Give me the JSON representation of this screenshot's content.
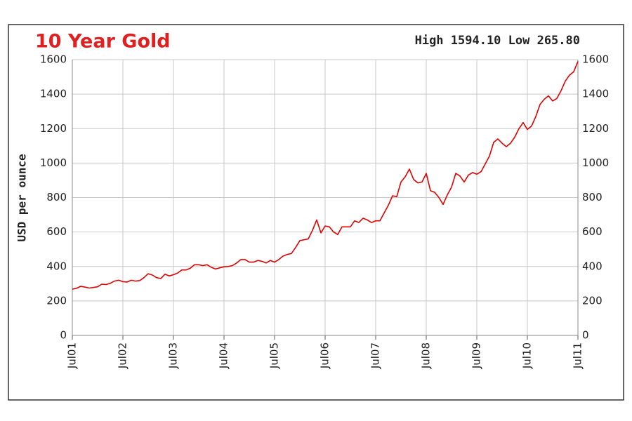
{
  "chart_data": {
    "type": "line",
    "title": "10 Year Gold",
    "summary": "High 1594.10 Low 265.80",
    "y_label": "USD per ounce",
    "categories": [
      "Jul01",
      null,
      null,
      null,
      null,
      null,
      null,
      null,
      null,
      null,
      null,
      null,
      "Jul02",
      null,
      null,
      null,
      null,
      null,
      null,
      null,
      null,
      null,
      null,
      null,
      "Jul03",
      null,
      null,
      null,
      null,
      null,
      null,
      null,
      null,
      null,
      null,
      null,
      "Jul04",
      null,
      null,
      null,
      null,
      null,
      null,
      null,
      null,
      null,
      null,
      null,
      "Jul05",
      null,
      null,
      null,
      null,
      null,
      null,
      null,
      null,
      null,
      null,
      null,
      "Jul06",
      null,
      null,
      null,
      null,
      null,
      null,
      null,
      null,
      null,
      null,
      null,
      "Jul07",
      null,
      null,
      null,
      null,
      null,
      null,
      null,
      null,
      null,
      null,
      null,
      "Jul08",
      null,
      null,
      null,
      null,
      null,
      null,
      null,
      null,
      null,
      null,
      null,
      "Jul09",
      null,
      null,
      null,
      null,
      null,
      null,
      null,
      null,
      null,
      null,
      null,
      "Jul10",
      null,
      null,
      null,
      null,
      null,
      null,
      null,
      null,
      null,
      null,
      null,
      "Jul11"
    ],
    "values": [
      268,
      273,
      285,
      280,
      275,
      278,
      282,
      297,
      295,
      302,
      315,
      320,
      312,
      310,
      320,
      315,
      318,
      335,
      358,
      350,
      335,
      330,
      355,
      345,
      352,
      362,
      380,
      380,
      390,
      410,
      410,
      405,
      410,
      395,
      385,
      392,
      398,
      400,
      405,
      420,
      440,
      440,
      425,
      425,
      435,
      430,
      420,
      435,
      425,
      440,
      460,
      470,
      475,
      510,
      550,
      555,
      560,
      610,
      670,
      595,
      635,
      630,
      600,
      585,
      630,
      630,
      630,
      665,
      655,
      680,
      670,
      655,
      665,
      665,
      710,
      755,
      810,
      805,
      890,
      920,
      965,
      905,
      885,
      890,
      940,
      840,
      830,
      800,
      760,
      815,
      860,
      940,
      925,
      890,
      930,
      945,
      935,
      950,
      995,
      1040,
      1120,
      1140,
      1115,
      1095,
      1115,
      1150,
      1200,
      1235,
      1195,
      1215,
      1270,
      1340,
      1370,
      1390,
      1360,
      1375,
      1420,
      1475,
      1510,
      1530,
      1590
    ],
    "color": "#e00000",
    "ylim": [
      0,
      1600
    ],
    "yticks": [
      0,
      200,
      400,
      600,
      800,
      1000,
      1200,
      1400,
      1600
    ],
    "grid": true
  }
}
